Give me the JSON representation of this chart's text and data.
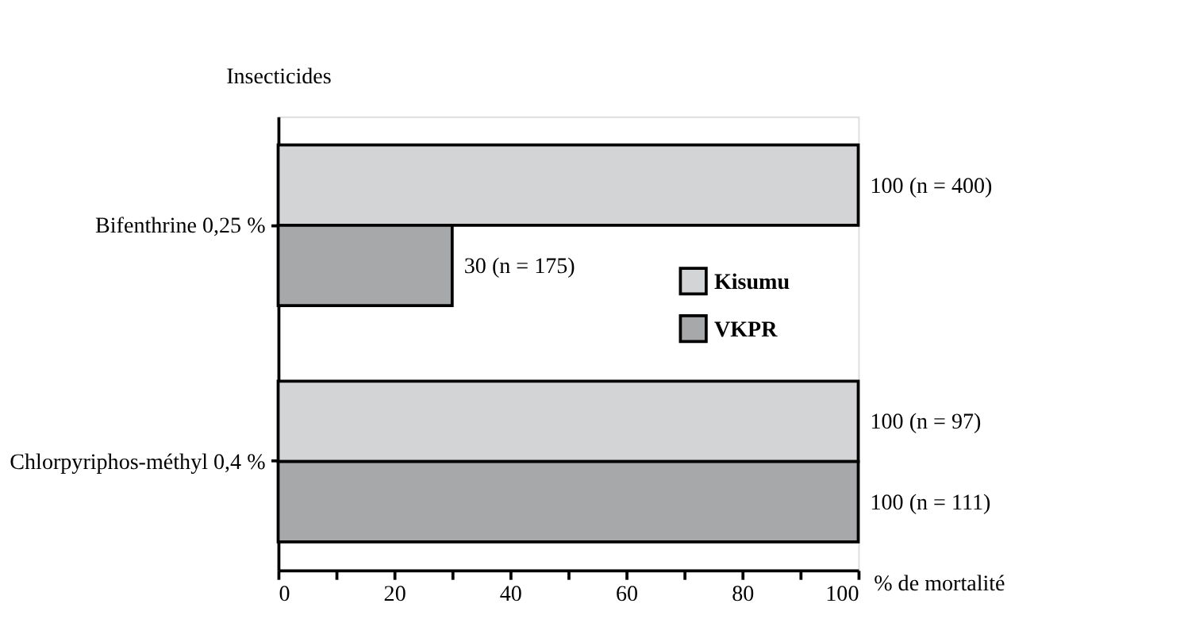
{
  "chart_data": {
    "type": "bar",
    "orientation": "horizontal",
    "ylabel": "Insecticides",
    "xlabel": "% de mortalité",
    "categories": [
      "Bifenthrine 0,25 %",
      "Chlorpyriphos-méthyl 0,4 %"
    ],
    "series": [
      {
        "name": "Kisumu",
        "color": "#d3d4d6",
        "values": [
          100,
          100
        ],
        "value_labels": [
          "100 (n = 400)",
          "100 (n = 97)"
        ]
      },
      {
        "name": "VKPR",
        "color": "#a7a8aa",
        "values": [
          30,
          100
        ],
        "value_labels": [
          "30 (n = 175)",
          "100 (n = 111)"
        ]
      }
    ],
    "xlim": [
      0,
      100
    ],
    "xticks": [
      0,
      {
        "value": 10,
        "label": null
      },
      20,
      {
        "value": 30,
        "label": null
      },
      40,
      {
        "value": 50,
        "label": null
      },
      60,
      {
        "value": 70,
        "label": null
      },
      80,
      {
        "value": 90,
        "label": null
      },
      100
    ],
    "grid": false,
    "legend": "right"
  }
}
